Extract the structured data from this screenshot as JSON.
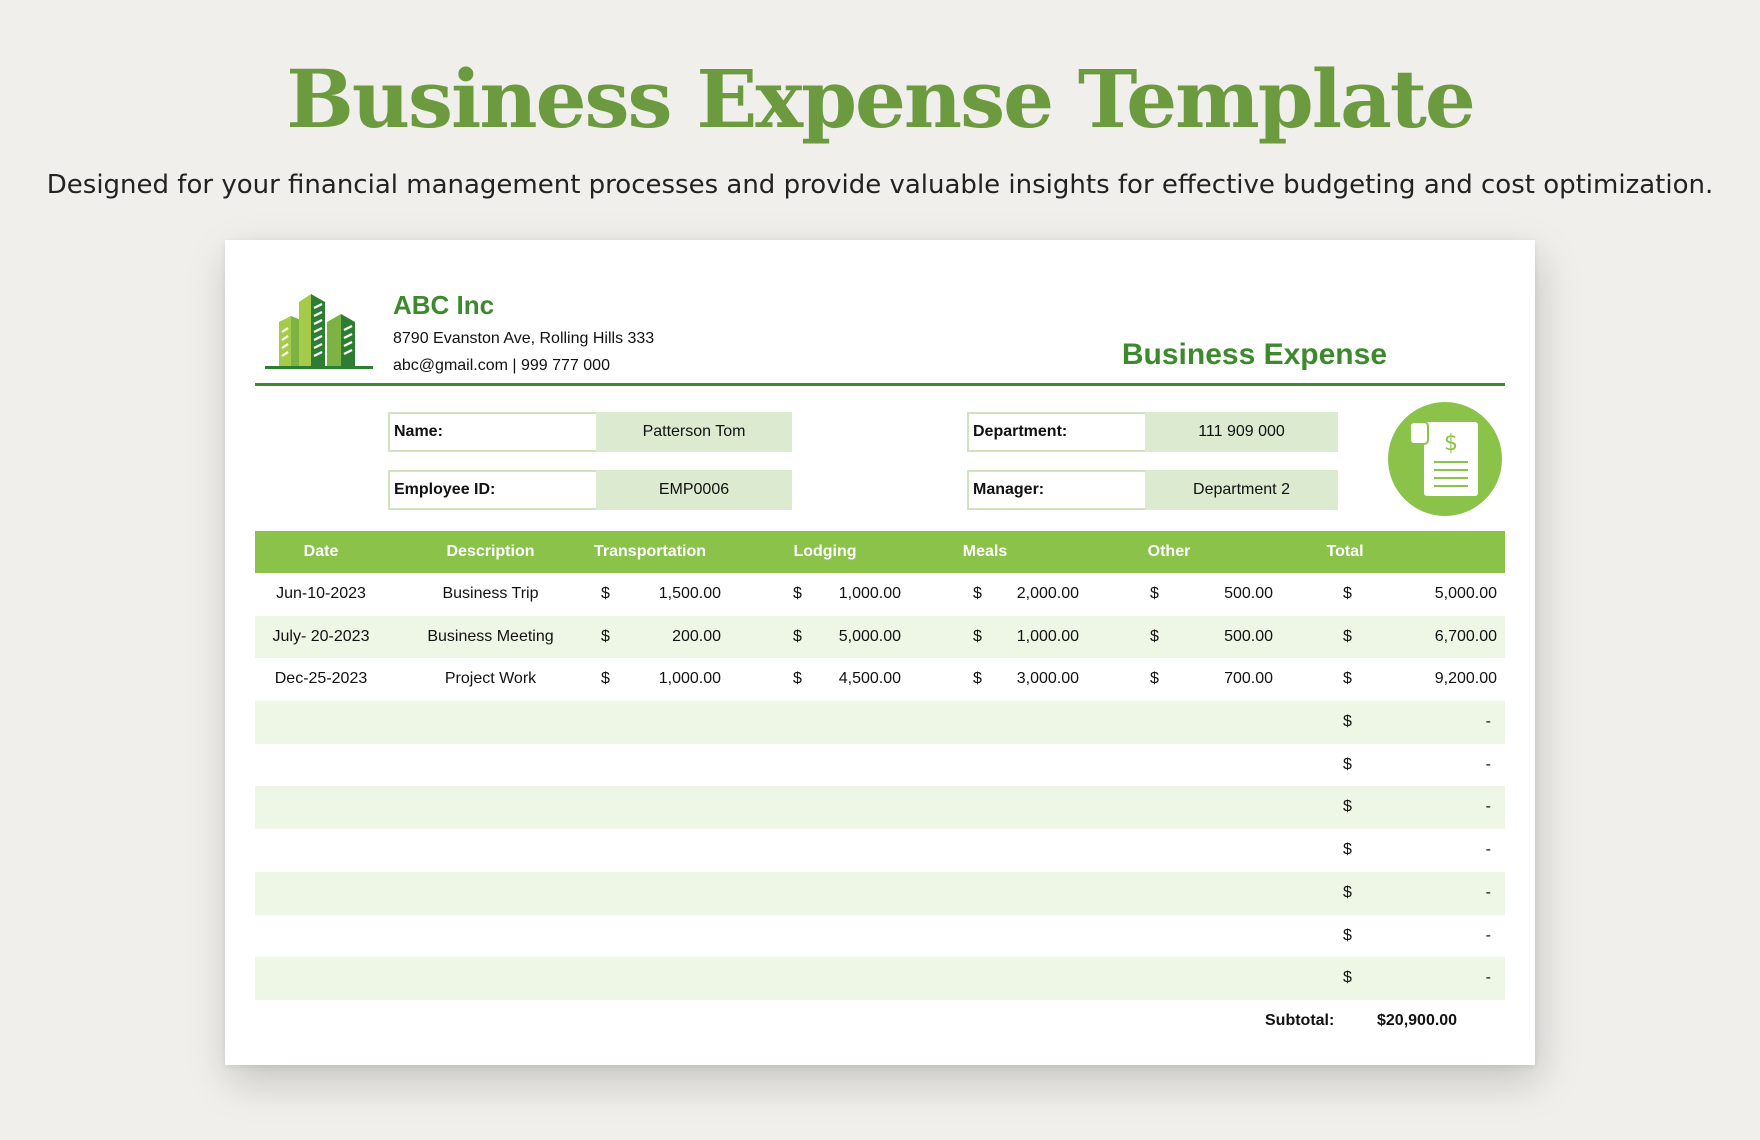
{
  "page": {
    "title": "Business Expense Template",
    "subtitle": "Designed for your financial management processes and provide valuable insights for effective budgeting and cost optimization."
  },
  "company": {
    "name": "ABC Inc",
    "address": "8790 Evanston Ave, Rolling Hills 333",
    "contact": "abc@gmail.com | 999 777 000"
  },
  "document": {
    "title": "Business Expense"
  },
  "employee": {
    "name_label": "Name:",
    "name_value": "Patterson Tom",
    "id_label": "Employee ID:",
    "id_value": "EMP0006",
    "department_label": "Department:",
    "department_value": "111 909 000",
    "manager_label": "Manager:",
    "manager_value": "Department 2"
  },
  "table": {
    "headers": [
      "Date",
      "Description",
      "Transportation",
      "Lodging",
      "Meals",
      "Other",
      "Total"
    ],
    "currency_symbol": "$",
    "rows": [
      {
        "date": "Jun-10-2023",
        "description": "Business Trip",
        "transportation": "1,500.00",
        "lodging": "1,000.00",
        "meals": "2,000.00",
        "other": "500.00",
        "total": "5,000.00"
      },
      {
        "date": "July- 20-2023",
        "description": "Business Meeting",
        "transportation": "200.00",
        "lodging": "5,000.00",
        "meals": "1,000.00",
        "other": "500.00",
        "total": "6,700.00"
      },
      {
        "date": "Dec-25-2023",
        "description": "Project Work",
        "transportation": "1,000.00",
        "lodging": "4,500.00",
        "meals": "3,000.00",
        "other": "700.00",
        "total": "9,200.00"
      },
      {
        "date": "",
        "description": "",
        "transportation": "",
        "lodging": "",
        "meals": "",
        "other": "",
        "total": "-"
      },
      {
        "date": "",
        "description": "",
        "transportation": "",
        "lodging": "",
        "meals": "",
        "other": "",
        "total": "-"
      },
      {
        "date": "",
        "description": "",
        "transportation": "",
        "lodging": "",
        "meals": "",
        "other": "",
        "total": "-"
      },
      {
        "date": "",
        "description": "",
        "transportation": "",
        "lodging": "",
        "meals": "",
        "other": "",
        "total": "-"
      },
      {
        "date": "",
        "description": "",
        "transportation": "",
        "lodging": "",
        "meals": "",
        "other": "",
        "total": "-"
      },
      {
        "date": "",
        "description": "",
        "transportation": "",
        "lodging": "",
        "meals": "",
        "other": "",
        "total": "-"
      },
      {
        "date": "",
        "description": "",
        "transportation": "",
        "lodging": "",
        "meals": "",
        "other": "",
        "total": "-"
      }
    ],
    "subtotal_label": "Subtotal:",
    "subtotal_value": "$20,900.00"
  },
  "colors": {
    "title_green": "#6b9a3f",
    "accent_green": "#3d8a2e",
    "header_green": "#8bc34a",
    "value_fill": "#dcebd0",
    "row_alt": "#eef6e6",
    "background": "#f0efeb"
  },
  "icons": {
    "logo": "buildings-logo-icon",
    "receipt": "dollar-receipt-icon"
  }
}
